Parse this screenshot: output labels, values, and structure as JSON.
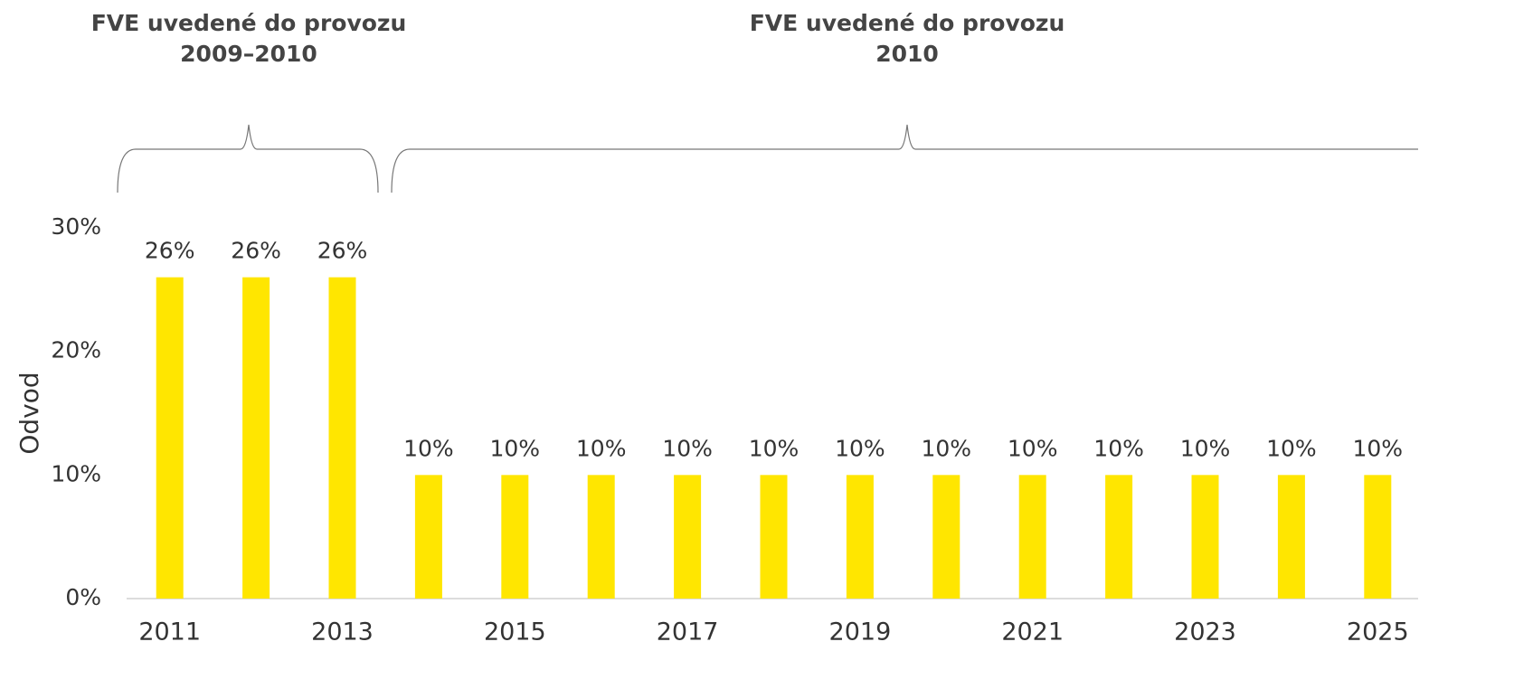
{
  "chart_data": {
    "type": "bar",
    "annotations": [
      {
        "lines": [
          "FVE uvedené do provozu",
          "2009–2010"
        ]
      },
      {
        "lines": [
          "FVE uvedené do provozu",
          "2010"
        ]
      }
    ],
    "ylabel": "Odvod",
    "categories": [
      "2011",
      null,
      "2013",
      null,
      "2015",
      null,
      "2017",
      null,
      "2019",
      null,
      "2021",
      null,
      "2023",
      null,
      "2025"
    ],
    "values": [
      26,
      26,
      26,
      10,
      10,
      10,
      10,
      10,
      10,
      10,
      10,
      10,
      10,
      10,
      10
    ],
    "value_labels": [
      "26%",
      "26%",
      "26%",
      "10%",
      "10%",
      "10%",
      "10%",
      "10%",
      "10%",
      "10%",
      "10%",
      "10%",
      "10%",
      "10%",
      "10%"
    ],
    "color": "#ffe600",
    "ylim": [
      0,
      30
    ],
    "yticks": [
      {
        "value": 0,
        "label": "0%"
      },
      {
        "value": 10,
        "label": "10%"
      },
      {
        "value": 20,
        "label": "20%"
      },
      {
        "value": 30,
        "label": "30%"
      }
    ],
    "grid": false
  }
}
